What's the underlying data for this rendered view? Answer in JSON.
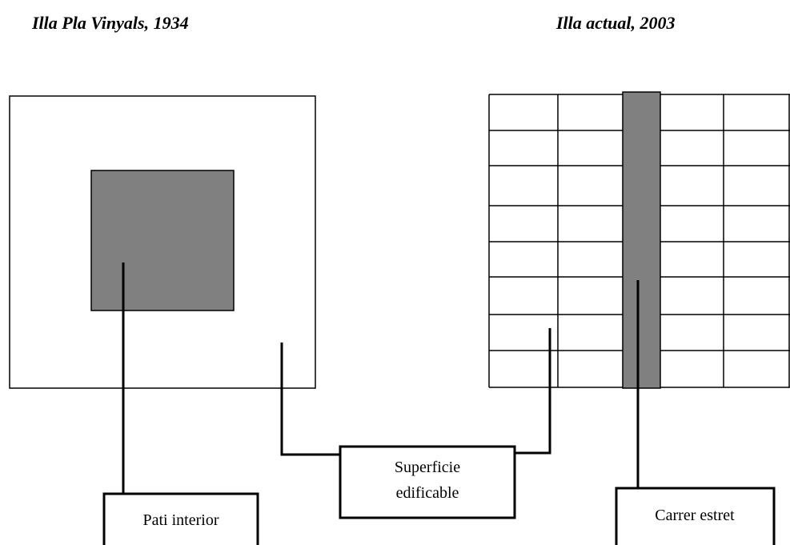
{
  "titles": {
    "left": "Illa Pla Vinyals, 1934",
    "right": "Illa actual, 2003"
  },
  "labels": {
    "patio": "Pati interior",
    "buildable_line1": "Superficie",
    "buildable_line2": "edificable",
    "street": "Carrer estret"
  }
}
